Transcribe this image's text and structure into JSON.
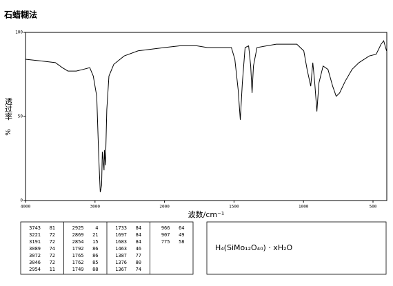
{
  "chart_data": {
    "type": "line",
    "title": "石蜡糊法",
    "xlabel": "波数/cm⁻¹",
    "ylabel": "透过率",
    "yunit": "%",
    "xlim": [
      4000,
      400
    ],
    "xticks": [
      4000,
      3000,
      2000,
      1500,
      1000,
      500
    ],
    "ylim": [
      0,
      100
    ],
    "yticks": [
      0,
      50,
      100
    ],
    "series": [
      {
        "color": "#000000",
        "x": [
          4000,
          3770,
          3570,
          3470,
          3390,
          3270,
          3170,
          3075,
          3025,
          2975,
          2945,
          2925,
          2905,
          2895,
          2870,
          2865,
          2850,
          2830,
          2800,
          2730,
          2580,
          2380,
          2000,
          1891,
          1767,
          1692,
          1593,
          1519,
          1494,
          1470,
          1455,
          1440,
          1420,
          1395,
          1380,
          1370,
          1360,
          1335,
          1196,
          1048,
          998,
          974,
          948,
          933,
          919,
          904,
          889,
          859,
          824,
          790,
          765,
          740,
          700,
          651,
          601,
          527,
          477,
          442,
          423,
          403
        ],
        "values": [
          84,
          83,
          82,
          79,
          77,
          77,
          78,
          79,
          74,
          62,
          25,
          5,
          9,
          29,
          18,
          30,
          21,
          54,
          74,
          81,
          86,
          89,
          91,
          92,
          92,
          91,
          91,
          91,
          84,
          66,
          48,
          70,
          91,
          92,
          80,
          64,
          80,
          91,
          93,
          93,
          89,
          78,
          68,
          82,
          70,
          53,
          70,
          80,
          78,
          68,
          62,
          64,
          71,
          78,
          82,
          86,
          87,
          93,
          95,
          89
        ]
      }
    ]
  },
  "peak_table": [
    [
      [
        "3743",
        "81"
      ],
      [
        "3221",
        "72"
      ],
      [
        "3191",
        "72"
      ],
      [
        "3089",
        "74"
      ],
      [
        "3072",
        "72"
      ],
      [
        "3046",
        "72"
      ],
      [
        "2954",
        "11"
      ]
    ],
    [
      [
        "2925",
        "4"
      ],
      [
        "2869",
        "21"
      ],
      [
        "2854",
        "15"
      ],
      [
        "1792",
        "86"
      ],
      [
        "1765",
        "86"
      ],
      [
        "1762",
        "85"
      ],
      [
        "1749",
        "88"
      ]
    ],
    [
      [
        "1733",
        "84"
      ],
      [
        "1697",
        "84"
      ],
      [
        "1683",
        "84"
      ],
      [
        "1463",
        "46"
      ],
      [
        "1387",
        "77"
      ],
      [
        "1376",
        "80"
      ],
      [
        "1367",
        "74"
      ]
    ],
    [
      [
        "966",
        "64"
      ],
      [
        "907",
        "49"
      ],
      [
        "775",
        "58"
      ]
    ]
  ],
  "formula": "H₄(SiMo₁₂O₄₀) · xH₂O"
}
